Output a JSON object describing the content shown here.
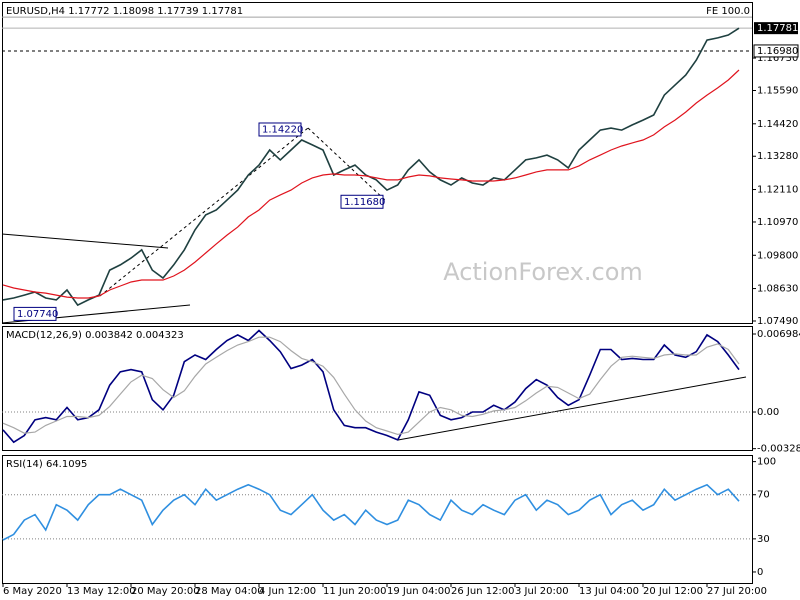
{
  "chart_data": [
    {
      "type": "line",
      "title": "EURUSD,H4  1.17772 1.18098 1.17739 1.17781",
      "watermark": "ActionForex.com",
      "series": [
        {
          "color": "#1f4040",
          "values": [
            1.0823,
            1.083,
            1.084,
            1.0851,
            1.083,
            1.0823,
            1.0858,
            1.0805,
            1.0823,
            1.084,
            1.0928,
            1.0946,
            1.097,
            1.0999,
            1.0928,
            1.09,
            1.0946,
            1.0999,
            1.1069,
            1.1122,
            1.1139,
            1.1174,
            1.1209,
            1.1262,
            1.1297,
            1.135,
            1.1315,
            1.135,
            1.1385,
            1.1368,
            1.135,
            1.1262,
            1.128,
            1.1297,
            1.1262,
            1.1245,
            1.1209,
            1.1227,
            1.128,
            1.1315,
            1.1273,
            1.1245,
            1.1227,
            1.1252,
            1.1234,
            1.1227,
            1.1252,
            1.1245,
            1.128,
            1.1315,
            1.1322,
            1.1332,
            1.1315,
            1.1287,
            1.135,
            1.1385,
            1.142,
            1.1427,
            1.142,
            1.1438,
            1.1455,
            1.1473,
            1.1543,
            1.1578,
            1.1613,
            1.1666,
            1.1736,
            1.1744,
            1.1754,
            1.1778
          ]
        },
        {
          "color": "#e0141e",
          "values": [
            1.0876,
            1.0865,
            1.0858,
            1.0851,
            1.0847,
            1.084,
            1.0833,
            1.083,
            1.083,
            1.0837,
            1.0858,
            1.0872,
            1.0886,
            1.0893,
            1.0893,
            1.0893,
            1.0907,
            1.0928,
            1.0956,
            1.0988,
            1.102,
            1.1051,
            1.1079,
            1.1115,
            1.1139,
            1.1174,
            1.1192,
            1.1209,
            1.1234,
            1.1252,
            1.1262,
            1.1266,
            1.1262,
            1.1262,
            1.1259,
            1.1252,
            1.1245,
            1.1245,
            1.1255,
            1.1262,
            1.1259,
            1.1252,
            1.1248,
            1.1245,
            1.1241,
            1.1241,
            1.1241,
            1.1245,
            1.1252,
            1.1262,
            1.1273,
            1.128,
            1.128,
            1.128,
            1.1294,
            1.1315,
            1.1332,
            1.135,
            1.1364,
            1.1375,
            1.1385,
            1.1403,
            1.1431,
            1.1455,
            1.1483,
            1.1515,
            1.1543,
            1.1568,
            1.1596,
            1.1631
          ]
        }
      ],
      "ylim": [
        1.0742,
        1.187
      ],
      "yticks": [
        {
          "value": 1.1673,
          "label": "1.16730"
        },
        {
          "value": 1.1559,
          "label": "1.15590"
        },
        {
          "value": 1.1442,
          "label": "1.14420"
        },
        {
          "value": 1.1328,
          "label": "1.13280"
        },
        {
          "value": 1.1211,
          "label": "1.12110"
        },
        {
          "value": 1.1097,
          "label": "1.10970"
        },
        {
          "value": 1.098,
          "label": "1.09800"
        },
        {
          "value": 1.0863,
          "label": "1.08630"
        },
        {
          "value": 1.0749,
          "label": "1.07490"
        }
      ],
      "last_price": 1.17781,
      "level": {
        "value": 1.1698,
        "label": "1.16980"
      },
      "fe_line": {
        "value": 1.1817,
        "label": "FE 100.0"
      },
      "annotations": [
        {
          "value": 1.1422,
          "label": "1.14220"
        },
        {
          "value": 1.1168,
          "label": "1.11680"
        },
        {
          "value": 1.0774,
          "label": "1.07740"
        }
      ]
    },
    {
      "type": "line",
      "title": "MACD(12,26,9) 0.003842 0.004323",
      "series": [
        {
          "color": "#000080",
          "values": [
            -0.0016,
            -0.0027,
            -0.0021,
            -0.0007,
            -0.0005,
            -0.0007,
            0.0004,
            -0.0007,
            -0.0005,
            0.0002,
            0.0024,
            0.0036,
            0.0038,
            0.0036,
            0.0011,
            0.0002,
            0.0015,
            0.0045,
            0.0051,
            0.0047,
            0.0056,
            0.0064,
            0.0069,
            0.0064,
            0.0073,
            0.0064,
            0.0054,
            0.0039,
            0.0042,
            0.0047,
            0.0036,
            0.0002,
            -0.0012,
            -0.0014,
            -0.0014,
            -0.0018,
            -0.0021,
            -0.0025,
            -0.0007,
            0.0018,
            0.0015,
            -0.0003,
            -0.0007,
            -0.0005,
            0,
            0,
            0.0006,
            0.0002,
            0.0009,
            0.0021,
            0.0029,
            0.0024,
            0.0013,
            0.0006,
            0.0011,
            0.0033,
            0.0056,
            0.0056,
            0.0047,
            0.0048,
            0.0047,
            0.0047,
            0.006,
            0.0051,
            0.0049,
            0.0054,
            0.0069,
            0.0063,
            0.0051,
            0.0038
          ]
        },
        {
          "color": "#a8a8a8",
          "values": [
            -0.001,
            -0.0014,
            -0.0019,
            -0.0018,
            -0.0012,
            -0.0008,
            -0.0004,
            -0.0004,
            -0.0005,
            -0.0003,
            0.0005,
            0.0016,
            0.0027,
            0.0033,
            0.003,
            0.002,
            0.0013,
            0.0019,
            0.0032,
            0.0043,
            0.0049,
            0.0055,
            0.006,
            0.0063,
            0.0067,
            0.0067,
            0.0063,
            0.0055,
            0.0048,
            0.0045,
            0.0041,
            0.0031,
            0.0016,
            0.0002,
            -0.0008,
            -0.0014,
            -0.0017,
            -0.002,
            -0.0018,
            -0.0009,
            0,
            0.0004,
            0.0002,
            -0.0003,
            -0.0004,
            -0.0002,
            0.0001,
            0.0002,
            0.0004,
            0.001,
            0.0017,
            0.0023,
            0.0022,
            0.0017,
            0.0012,
            0.0016,
            0.0029,
            0.0041,
            0.0049,
            0.005,
            0.0049,
            0.0048,
            0.0051,
            0.0052,
            0.0051,
            0.0051,
            0.0058,
            0.0061,
            0.0056,
            0.0043
          ]
        }
      ],
      "ylim": [
        -0.0034,
        0.0077
      ],
      "yticks": [
        0.006984,
        {
          "value": 0,
          "label": "0.00"
        },
        -0.00328
      ],
      "levels": [
        0
      ]
    },
    {
      "type": "line",
      "title": "RSI(14) 64.1095",
      "categories": [
        "6 May 2020",
        null,
        null,
        null,
        null,
        null,
        "13 May 12:00",
        null,
        null,
        null,
        null,
        null,
        "20 May 20:00",
        null,
        null,
        null,
        null,
        null,
        "28 May 04:00",
        null,
        null,
        null,
        null,
        null,
        "4 Jun 12:00",
        null,
        null,
        null,
        null,
        null,
        "11 Jun 20:00",
        null,
        null,
        null,
        null,
        null,
        "19 Jun 04:00",
        null,
        null,
        null,
        null,
        null,
        "26 Jun 12:00",
        null,
        null,
        null,
        null,
        null,
        "3 Jul 20:00",
        null,
        null,
        null,
        null,
        null,
        "13 Jul 04:00",
        null,
        null,
        null,
        null,
        null,
        "20 Jul 12:00",
        null,
        null,
        null,
        null,
        null,
        "27 Jul 20:00",
        null,
        null,
        null
      ],
      "series": [
        {
          "color": "#2f8fe0",
          "values": [
            29,
            34,
            47,
            52,
            38,
            61,
            56,
            47,
            61,
            70,
            70,
            75,
            70,
            65,
            43,
            56,
            65,
            70,
            61,
            75,
            65,
            70,
            75,
            79,
            75,
            70,
            56,
            52,
            61,
            70,
            56,
            47,
            52,
            43,
            56,
            47,
            43,
            47,
            65,
            61,
            52,
            47,
            65,
            56,
            52,
            61,
            56,
            52,
            65,
            70,
            56,
            65,
            61,
            52,
            56,
            65,
            70,
            52,
            61,
            65,
            56,
            61,
            75,
            65,
            70,
            75,
            79,
            70,
            75,
            64.1095
          ]
        }
      ],
      "ylim": [
        -10,
        106
      ],
      "yticks": [
        100,
        70,
        30,
        0
      ],
      "levels": [
        70,
        30
      ]
    }
  ]
}
